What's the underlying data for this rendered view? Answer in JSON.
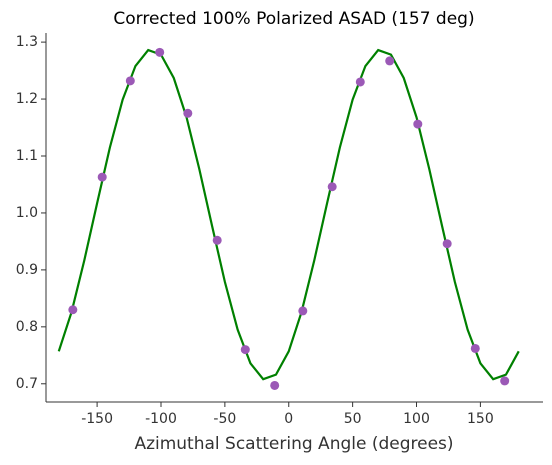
{
  "chart_data": {
    "type": "scatter",
    "title": "Corrected 100% Polarized ASAD (157 deg)",
    "x_label": "Azimuthal Scattering Angle (degrees)",
    "xlim": [
      -190,
      199
    ],
    "ylim": [
      0.668,
      1.316
    ],
    "xticks": [
      -150,
      -100,
      -50,
      0,
      50,
      100,
      150
    ],
    "yticks": [
      0.7,
      0.8,
      0.9,
      {
        "value": 1.0,
        "label": "1.0"
      },
      1.1,
      1.2,
      1.3
    ],
    "series": [
      {
        "kind": "scatter",
        "color": "#9b59b6",
        "x": [
          -169,
          -146,
          -124,
          -101,
          -79,
          -56,
          -34,
          -11,
          11,
          34,
          56,
          79,
          101,
          124,
          146,
          169
        ],
        "values": [
          0.83,
          1.063,
          1.232,
          1.282,
          1.175,
          0.952,
          0.76,
          0.697,
          0.828,
          1.046,
          1.23,
          1.267,
          1.156,
          0.946,
          0.762,
          0.705
        ]
      },
      {
        "kind": "line",
        "color": "#008000",
        "x": [
          -180,
          -170,
          -160,
          -150,
          -140,
          -130,
          -120,
          -110,
          -100,
          -90,
          -80,
          -70,
          -60,
          -50,
          -40,
          -30,
          -20,
          -10,
          0,
          10,
          20,
          30,
          40,
          50,
          60,
          70,
          80,
          90,
          100,
          110,
          120,
          130,
          140,
          150,
          160,
          170,
          180
        ],
        "values": [
          0.757,
          0.826,
          0.917,
          1.017,
          1.115,
          1.199,
          1.258,
          1.286,
          1.278,
          1.237,
          1.168,
          1.077,
          0.977,
          0.879,
          0.795,
          0.736,
          0.708,
          0.716,
          0.757,
          0.826,
          0.917,
          1.017,
          1.115,
          1.199,
          1.258,
          1.286,
          1.278,
          1.237,
          1.168,
          1.077,
          0.977,
          0.879,
          0.795,
          0.736,
          0.708,
          0.716,
          0.757
        ]
      }
    ]
  }
}
